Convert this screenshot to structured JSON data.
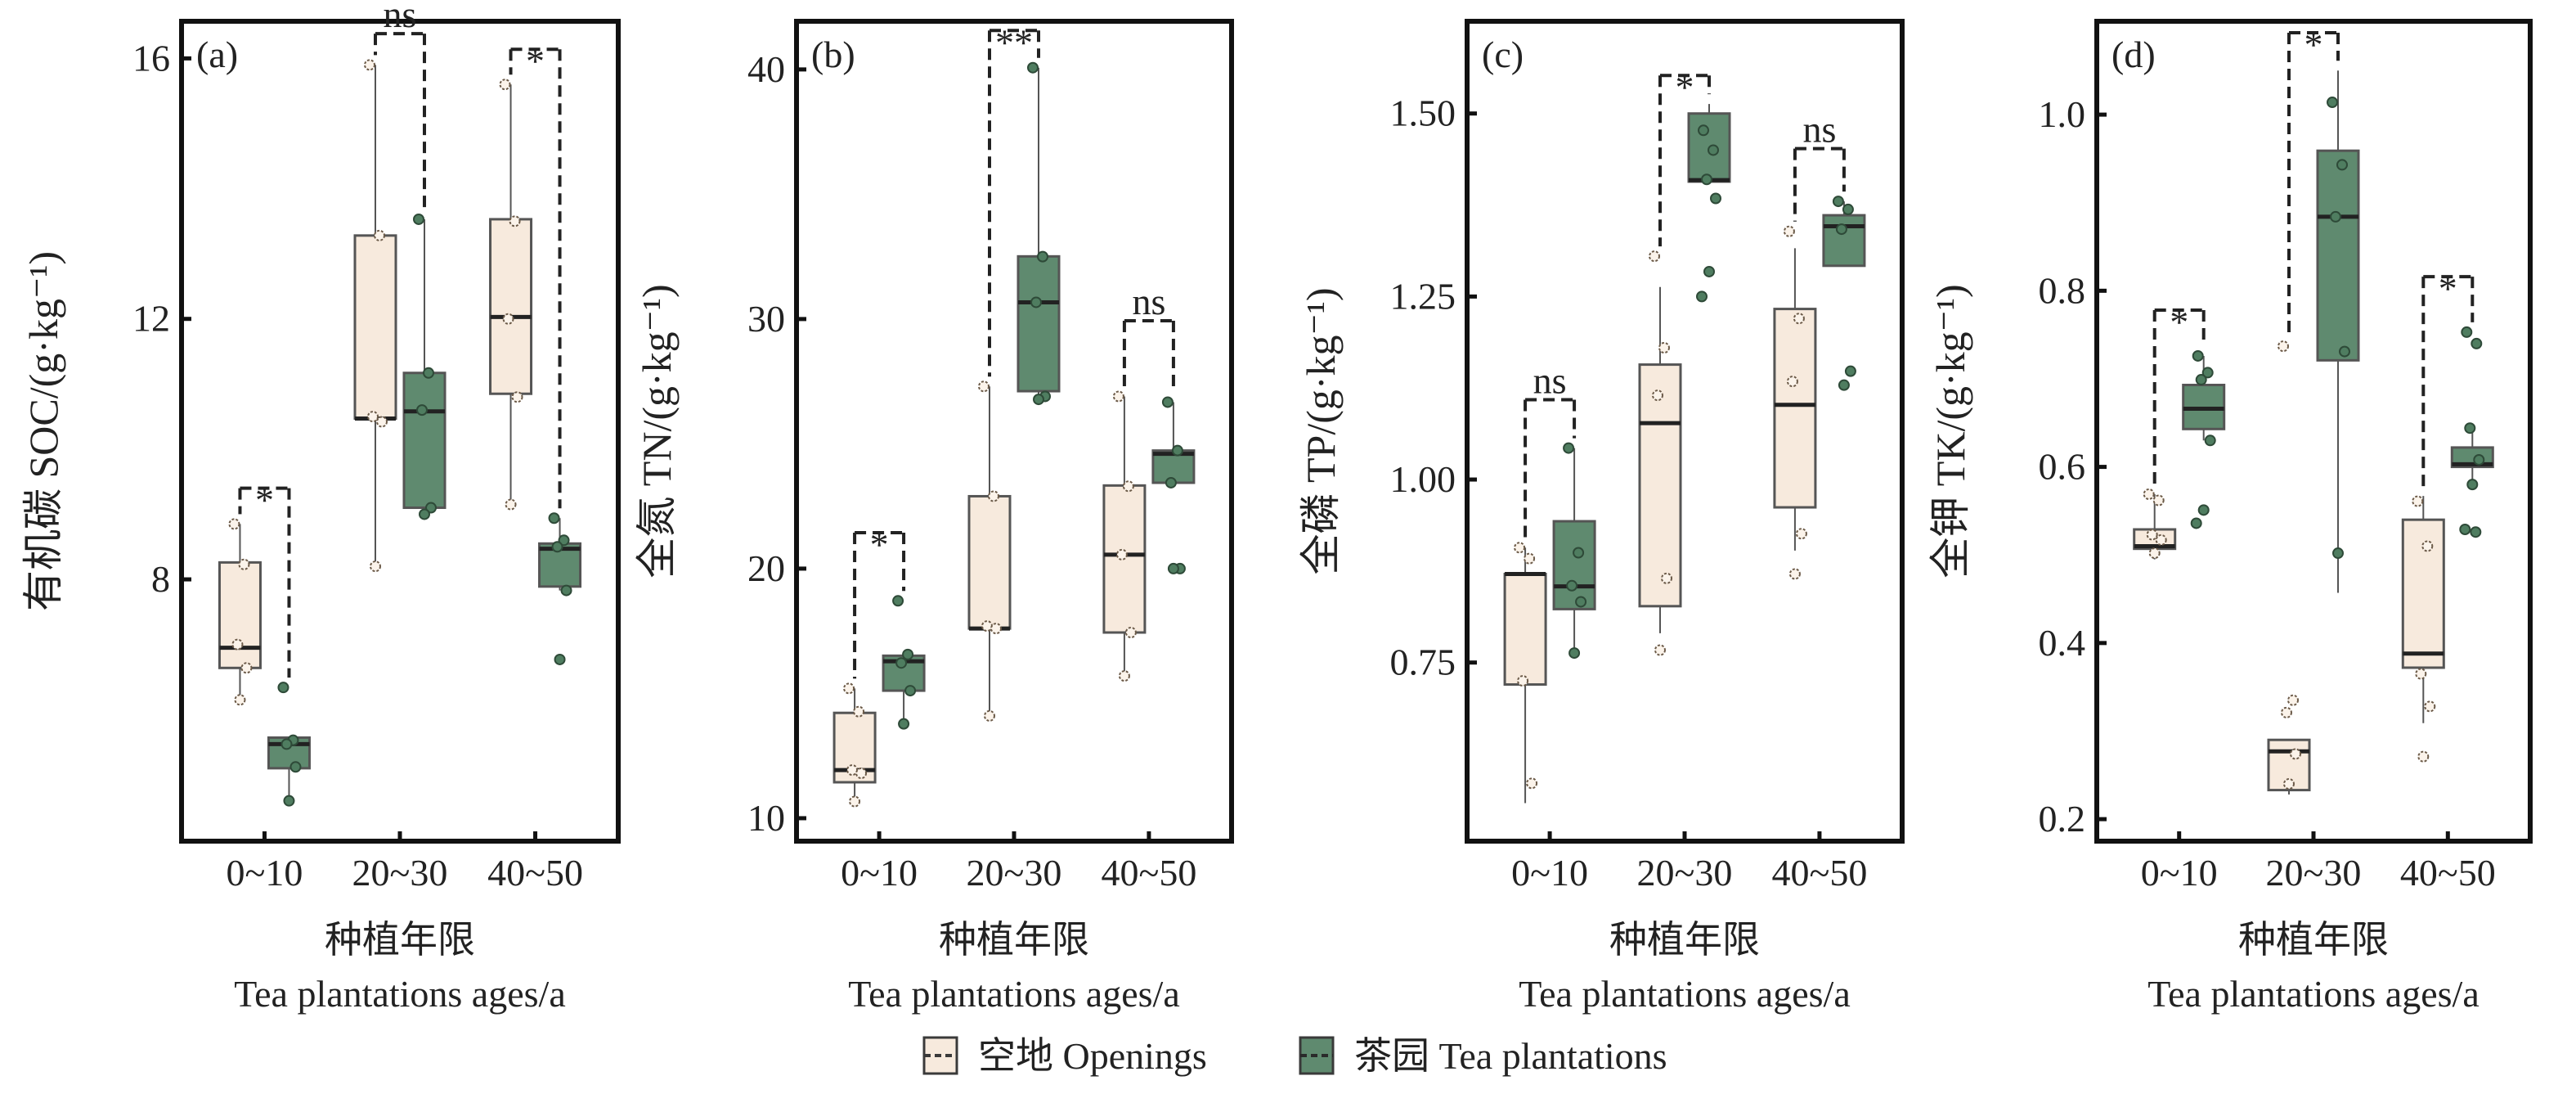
{
  "colors": {
    "openings": "#f7eadd",
    "tea": "#5f8a6f",
    "edge": "#3a3a3a",
    "frame": "#111111"
  },
  "legend": {
    "items": [
      {
        "label": "空地 Openings",
        "color": "#f7eadd"
      },
      {
        "label": "茶园 Tea plantations",
        "color": "#5f8a6f"
      }
    ]
  },
  "chart_data": [
    {
      "type": "box",
      "panel_label": "(a)",
      "ylabel": "有机碳 SOC/(g·kg⁻¹)",
      "xlabel_cn": "种植年限",
      "xlabel_en": "Tea plantations ages/a",
      "categories": [
        "0~10",
        "20~30",
        "40~50"
      ],
      "ylim": [
        3.98,
        16.57
      ],
      "yticks": [
        {
          "v": 8,
          "label": "8"
        },
        {
          "v": 12,
          "label": "12"
        },
        {
          "v": 16,
          "label": "16"
        }
      ],
      "series": [
        {
          "name": "空地 Openings",
          "boxes": [
            {
              "q1": 6.64,
              "median": 6.95,
              "q3": 8.26,
              "low": 6.15,
              "high": 8.85,
              "points": [
                8.85,
                8.23,
                7.0,
                6.64,
                6.15
              ]
            },
            {
              "q1": 10.47,
              "median": 10.47,
              "q3": 13.28,
              "low": 8.2,
              "high": 15.9,
              "points": [
                15.9,
                13.28,
                10.5,
                10.42,
                8.2
              ]
            },
            {
              "q1": 10.85,
              "median": 12.03,
              "q3": 13.53,
              "low": 9.15,
              "high": 15.6,
              "points": [
                15.6,
                13.5,
                12.0,
                10.8,
                9.15
              ]
            }
          ]
        },
        {
          "name": "茶园 Tea plantations",
          "boxes": [
            {
              "q1": 5.1,
              "median": 5.47,
              "q3": 5.57,
              "low": 4.6,
              "high": 5.57,
              "points": [
                6.34,
                5.53,
                5.47,
                5.12,
                4.6
              ]
            },
            {
              "q1": 9.1,
              "median": 10.58,
              "q3": 11.17,
              "low": 9.0,
              "high": 13.53,
              "points": [
                13.53,
                11.17,
                10.6,
                9.1,
                9.0
              ]
            },
            {
              "q1": 7.89,
              "median": 8.47,
              "q3": 8.55,
              "low": 7.83,
              "high": 8.94,
              "points": [
                8.94,
                8.6,
                8.5,
                7.83,
                6.77
              ]
            }
          ]
        }
      ],
      "significance": [
        {
          "label": "*",
          "y": 9.4
        },
        {
          "label": "ns",
          "y": 16.38
        },
        {
          "label": "*",
          "y": 16.14
        }
      ]
    },
    {
      "type": "box",
      "panel_label": "(b)",
      "ylabel": "全氮 TN/(g·kg⁻¹)",
      "xlabel_cn": "种植年限",
      "xlabel_en": "Tea plantations ages/a",
      "categories": [
        "0~10",
        "20~30",
        "40~50"
      ],
      "ylim": [
        9.08,
        41.93
      ],
      "yticks": [
        {
          "v": 10,
          "label": "10"
        },
        {
          "v": 20,
          "label": "20"
        },
        {
          "v": 30,
          "label": "30"
        },
        {
          "v": 40,
          "label": "40"
        }
      ],
      "series": [
        {
          "name": "空地 Openings",
          "boxes": [
            {
              "q1": 11.44,
              "median": 11.93,
              "q3": 14.22,
              "low": 10.67,
              "high": 15.2,
              "points": [
                15.2,
                14.27,
                11.93,
                11.8,
                10.67
              ]
            },
            {
              "q1": 17.6,
              "median": 17.6,
              "q3": 22.9,
              "low": 14.1,
              "high": 27.3,
              "points": [
                27.3,
                22.9,
                17.7,
                17.6,
                14.1
              ]
            },
            {
              "q1": 17.44,
              "median": 20.56,
              "q3": 23.33,
              "low": 15.7,
              "high": 26.9,
              "points": [
                26.9,
                23.3,
                20.56,
                17.44,
                15.7
              ]
            }
          ]
        },
        {
          "name": "茶园 Tea plantations",
          "boxes": [
            {
              "q1": 15.11,
              "median": 16.29,
              "q3": 16.51,
              "low": 13.78,
              "high": 16.56,
              "points": [
                18.71,
                16.56,
                16.22,
                15.11,
                13.78
              ]
            },
            {
              "q1": 27.11,
              "median": 30.67,
              "q3": 32.51,
              "low": 26.78,
              "high": 40.07,
              "points": [
                40.07,
                32.5,
                30.67,
                26.9,
                26.78
              ]
            },
            {
              "q1": 23.44,
              "median": 24.6,
              "q3": 24.73,
              "low": 23.44,
              "high": 26.67,
              "points": [
                26.67,
                24.73,
                23.44,
                20.0,
                20.0
              ]
            }
          ]
        }
      ],
      "significance": [
        {
          "label": "*",
          "y": 21.44
        },
        {
          "label": "**",
          "y": 41.56
        },
        {
          "label": "ns",
          "y": 29.93
        }
      ]
    },
    {
      "type": "box",
      "panel_label": "(c)",
      "ylabel": "全磷 TP/(g·kg⁻¹)",
      "xlabel_cn": "种植年限",
      "xlabel_en": "Tea plantations ages/a",
      "categories": [
        "0~10",
        "20~30",
        "40~50"
      ],
      "ylim": [
        0.506,
        1.626
      ],
      "yticks": [
        {
          "v": 0.75,
          "label": "0.75"
        },
        {
          "v": 1.0,
          "label": "1.00"
        },
        {
          "v": 1.25,
          "label": "1.25"
        },
        {
          "v": 1.5,
          "label": "1.50"
        }
      ],
      "series": [
        {
          "name": "空地 Openings",
          "boxes": [
            {
              "q1": 0.72,
              "median": 0.871,
              "q3": 0.871,
              "low": 0.558,
              "high": 0.907,
              "points": [
                0.907,
                0.892,
                0.725,
                0.585
              ]
            },
            {
              "q1": 0.827,
              "median": 1.077,
              "q3": 1.157,
              "low": 0.79,
              "high": 1.263,
              "points": [
                1.305,
                1.18,
                1.115,
                0.865,
                0.767
              ]
            },
            {
              "q1": 0.962,
              "median": 1.102,
              "q3": 1.233,
              "low": 0.903,
              "high": 1.316,
              "points": [
                1.339,
                1.22,
                1.134,
                0.926,
                0.871
              ]
            }
          ]
        },
        {
          "name": "茶园 Tea plantations",
          "boxes": [
            {
              "q1": 0.823,
              "median": 0.854,
              "q3": 0.943,
              "low": 0.763,
              "high": 1.043,
              "points": [
                1.043,
                0.9,
                0.855,
                0.833,
                0.763
              ]
            },
            {
              "q1": 1.407,
              "median": 1.409,
              "q3": 1.5,
              "low": 1.407,
              "high": 1.513,
              "points": [
                1.477,
                1.45,
                1.41,
                1.384,
                1.284,
                1.25
              ]
            },
            {
              "q1": 1.292,
              "median": 1.346,
              "q3": 1.361,
              "low": 1.292,
              "high": 1.38,
              "points": [
                1.38,
                1.369,
                1.342,
                1.148,
                1.129
              ]
            }
          ]
        }
      ],
      "significance": [
        {
          "label": "ns",
          "y": 1.109
        },
        {
          "label": "*",
          "y": 1.552
        },
        {
          "label": "ns",
          "y": 1.452
        }
      ]
    },
    {
      "type": "box",
      "panel_label": "(d)",
      "ylabel": "全钾 TK/(g·kg⁻¹)",
      "xlabel_cn": "种植年限",
      "xlabel_en": "Tea plantations ages/a",
      "categories": [
        "0~10",
        "20~30",
        "40~50"
      ],
      "ylim": [
        0.175,
        1.106
      ],
      "yticks": [
        {
          "v": 0.2,
          "label": "0.2"
        },
        {
          "v": 0.4,
          "label": "0.4"
        },
        {
          "v": 0.6,
          "label": "0.6"
        },
        {
          "v": 0.8,
          "label": "0.8"
        },
        {
          "v": 1.0,
          "label": "1.0"
        }
      ],
      "series": [
        {
          "name": "空地 Openings",
          "boxes": [
            {
              "q1": 0.507,
              "median": 0.51,
              "q3": 0.529,
              "low": 0.495,
              "high": 0.569,
              "points": [
                0.569,
                0.562,
                0.523,
                0.517,
                0.502
              ]
            },
            {
              "q1": 0.233,
              "median": 0.277,
              "q3": 0.29,
              "low": 0.228,
              "high": 0.29,
              "points": [
                0.737,
                0.335,
                0.321,
                0.274,
                0.24
              ]
            },
            {
              "q1": 0.372,
              "median": 0.388,
              "q3": 0.54,
              "low": 0.309,
              "high": 0.567,
              "points": [
                0.561,
                0.51,
                0.365,
                0.328,
                0.271
              ]
            }
          ]
        },
        {
          "name": "茶园 Tea plantations",
          "boxes": [
            {
              "q1": 0.643,
              "median": 0.666,
              "q3": 0.693,
              "low": 0.63,
              "high": 0.726,
              "points": [
                0.726,
                0.707,
                0.699,
                0.63,
                0.551,
                0.536
              ]
            },
            {
              "q1": 0.721,
              "median": 0.884,
              "q3": 0.959,
              "low": 0.457,
              "high": 1.05,
              "points": [
                1.014,
                0.943,
                0.884,
                0.731,
                0.502
              ]
            },
            {
              "q1": 0.6,
              "median": 0.603,
              "q3": 0.622,
              "low": 0.58,
              "high": 0.644,
              "points": [
                0.753,
                0.74,
                0.644,
                0.608,
                0.58,
                0.529,
                0.526
              ]
            }
          ]
        }
      ],
      "significance": [
        {
          "label": "*",
          "y": 0.778
        },
        {
          "label": "*",
          "y": 1.093
        },
        {
          "label": "*",
          "y": 0.816
        }
      ]
    }
  ]
}
